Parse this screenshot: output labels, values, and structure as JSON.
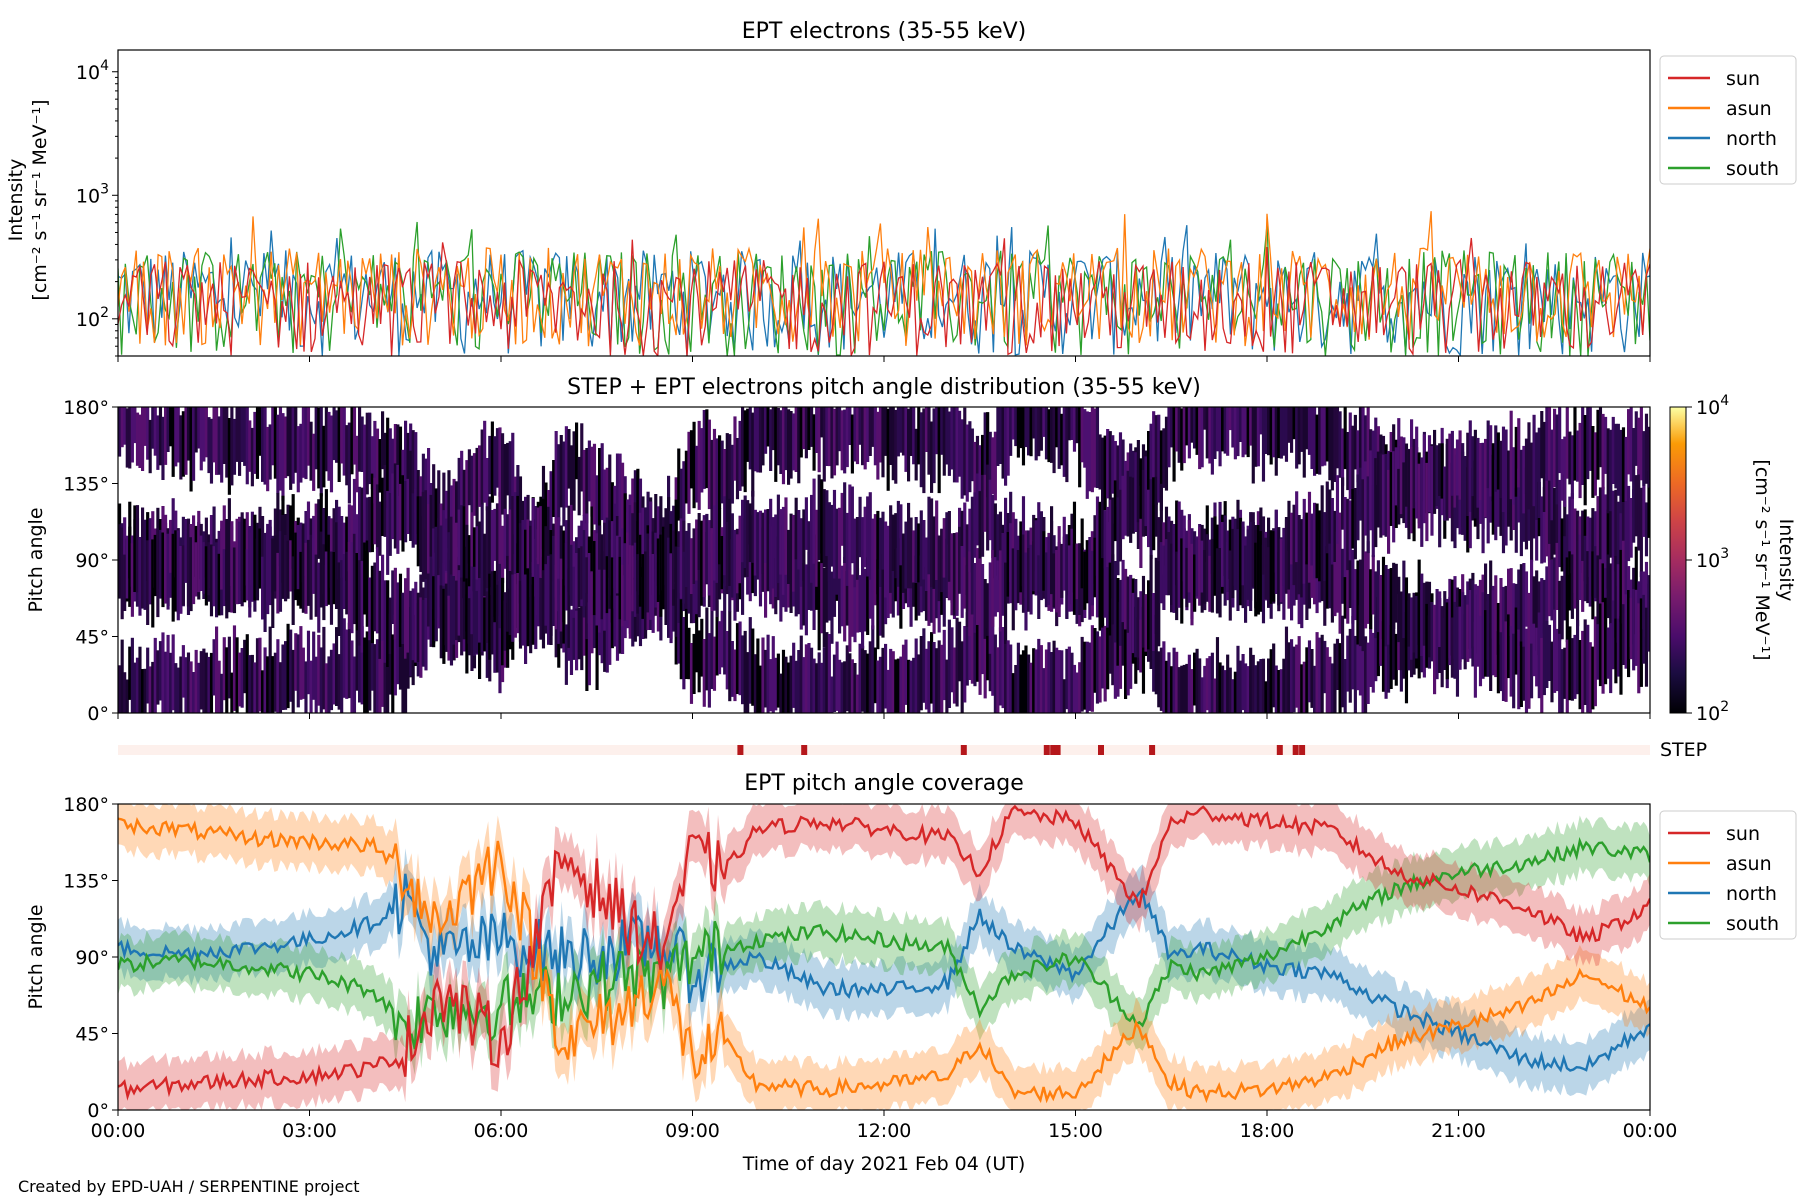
{
  "credit": "Created by EPD-UAH / SERPENTINE project",
  "colors": {
    "sun": "#d62728",
    "asun": "#ff7f0e",
    "north": "#1f77b4",
    "south": "#2ca02c",
    "step_bar_bg": "#fdf0ec",
    "step_mark": "#b5171b"
  },
  "chart_data": [
    {
      "panel": "intensity",
      "type": "line",
      "title": "EPT electrons (35-55 keV)",
      "ylabel_line1": "Intensity",
      "ylabel_line2": "[cm⁻² s⁻¹ sr⁻¹ MeV⁻¹]",
      "yscale": "log",
      "ylim": [
        50,
        15000
      ],
      "yticks": [
        {
          "value": 100,
          "base": "10",
          "exp": "2"
        },
        {
          "value": 1000,
          "base": "10",
          "exp": "3"
        },
        {
          "value": 10000,
          "base": "10",
          "exp": "4"
        }
      ],
      "xlim_hours": [
        0,
        24
      ],
      "legend_position": "outside-right-top",
      "series": [
        {
          "name": "sun",
          "color_key": "sun",
          "typical_range": [
            50,
            300
          ],
          "peak": 500
        },
        {
          "name": "asun",
          "color_key": "asun",
          "typical_range": [
            60,
            380
          ],
          "peak": 770
        },
        {
          "name": "north",
          "color_key": "north",
          "typical_range": [
            50,
            360
          ],
          "peak": 580
        },
        {
          "name": "south",
          "color_key": "south",
          "typical_range": [
            50,
            360
          ],
          "peak": 620
        }
      ]
    },
    {
      "panel": "pad",
      "type": "heatmap",
      "title": "STEP + EPT electrons pitch angle distribution (35-55 keV)",
      "ylabel": "Pitch angle",
      "ylim": [
        0,
        180
      ],
      "ytick_labels": [
        "0°",
        "45°",
        "90°",
        "135°",
        "180°"
      ],
      "ytick_values": [
        0,
        45,
        90,
        135,
        180
      ],
      "colorbar": {
        "label_line1": "Intensity",
        "label_line2": "[cm⁻² s⁻¹ sr⁻¹ MeV⁻¹]",
        "scale": "log",
        "range": [
          100,
          10000
        ],
        "ticks": [
          {
            "base": "10",
            "exp": "2"
          },
          {
            "base": "10",
            "exp": "3"
          },
          {
            "base": "10",
            "exp": "4"
          }
        ],
        "colormap": "inferno"
      }
    },
    {
      "panel": "step",
      "type": "table",
      "label": "STEP",
      "marks_hours": [
        9.75,
        10.75,
        13.25,
        14.55,
        14.65,
        14.72,
        15.4,
        16.2,
        18.2,
        18.45,
        18.55
      ]
    },
    {
      "panel": "coverage",
      "type": "line",
      "title": "EPT pitch angle coverage",
      "ylabel": "Pitch angle",
      "ylim": [
        0,
        180
      ],
      "ytick_labels": [
        "0°",
        "45°",
        "90°",
        "135°",
        "180°"
      ],
      "ytick_values": [
        0,
        45,
        90,
        135,
        180
      ],
      "xlabel": "Time of day 2021 Feb 04 (UT)",
      "xlim_hours": [
        0,
        24
      ],
      "xtick_hours": [
        0,
        3,
        6,
        9,
        12,
        15,
        18,
        21,
        24
      ],
      "xtick_labels": [
        "00:00",
        "03:00",
        "06:00",
        "09:00",
        "12:00",
        "15:00",
        "18:00",
        "21:00",
        "00:00"
      ],
      "legend_position": "outside-right-top",
      "band_halfwidth_deg": 15,
      "series": [
        {
          "name": "sun",
          "color_key": "sun",
          "x": [
            0,
            1,
            2,
            3,
            4,
            4.5,
            5,
            6,
            7,
            8,
            8.5,
            9,
            9.5,
            10,
            11,
            12,
            13,
            13.5,
            14,
            15,
            16,
            16.5,
            17,
            18,
            19,
            20,
            21,
            22,
            23,
            24
          ],
          "y": [
            12,
            15,
            18,
            20,
            25,
            35,
            70,
            40,
            150,
            110,
            95,
            150,
            140,
            165,
            170,
            165,
            160,
            140,
            175,
            170,
            120,
            170,
            175,
            170,
            165,
            140,
            130,
            120,
            100,
            120
          ]
        },
        {
          "name": "asun",
          "color_key": "asun",
          "x": [
            0,
            1,
            2,
            3,
            4,
            4.5,
            5,
            6,
            7,
            8,
            8.5,
            9,
            9.5,
            10,
            11,
            12,
            13,
            13.5,
            14,
            15,
            16,
            16.5,
            17,
            18,
            19,
            20,
            21,
            22,
            23,
            24
          ],
          "y": [
            168,
            165,
            160,
            158,
            155,
            140,
            110,
            150,
            40,
            60,
            80,
            30,
            40,
            15,
            12,
            15,
            20,
            40,
            10,
            10,
            50,
            15,
            10,
            12,
            20,
            40,
            50,
            60,
            80,
            60
          ]
        },
        {
          "name": "north",
          "color_key": "north",
          "x": [
            0,
            1,
            2,
            3,
            4,
            4.5,
            5,
            6,
            7,
            8,
            8.5,
            9,
            9.5,
            10,
            11,
            12,
            13,
            13.5,
            14,
            15,
            16,
            16.5,
            17,
            18,
            19,
            20,
            21,
            22,
            23,
            24
          ],
          "y": [
            95,
            92,
            95,
            100,
            110,
            125,
            90,
            100,
            90,
            95,
            100,
            80,
            85,
            90,
            72,
            70,
            75,
            115,
            95,
            80,
            130,
            90,
            95,
            85,
            80,
            60,
            45,
            30,
            25,
            50
          ]
        },
        {
          "name": "south",
          "color_key": "south",
          "x": [
            0,
            1,
            2,
            3,
            4,
            4.5,
            5,
            6,
            7,
            8,
            8.5,
            9,
            9.5,
            10,
            11,
            12,
            13,
            13.5,
            14,
            15,
            16,
            16.5,
            17,
            18,
            19,
            20,
            21,
            22,
            23,
            24
          ],
          "y": [
            85,
            88,
            85,
            80,
            70,
            50,
            60,
            60,
            70,
            80,
            75,
            90,
            95,
            100,
            105,
            100,
            95,
            60,
            80,
            90,
            50,
            85,
            80,
            90,
            110,
            130,
            140,
            145,
            155,
            150
          ]
        }
      ]
    }
  ]
}
